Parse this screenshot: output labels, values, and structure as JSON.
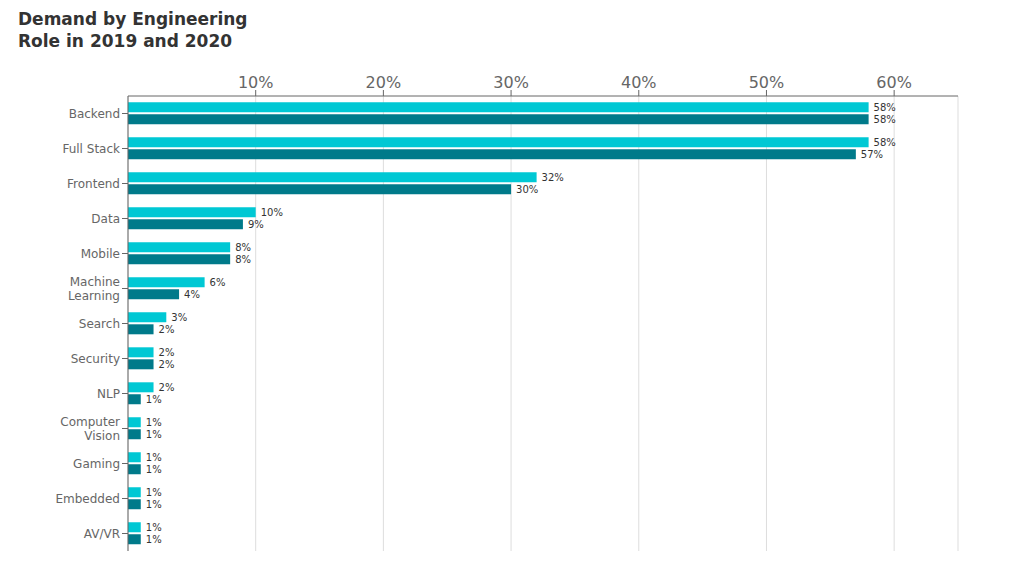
{
  "chart_data": {
    "type": "bar",
    "title": "Demand by Engineering\nRole in 2019 and 2020",
    "orientation": "horizontal",
    "categories": [
      "Backend",
      "Full Stack",
      "Frontend",
      "Data",
      "Mobile",
      "Machine\nLearning",
      "Search",
      "Security",
      "NLP",
      "Computer\nVision",
      "Gaming",
      "Embedded",
      "AV/VR"
    ],
    "series": [
      {
        "color": "#00c8d4",
        "values": [
          58,
          58,
          32,
          10,
          8,
          6,
          3,
          2,
          2,
          1,
          1,
          1,
          1
        ],
        "value_labels": [
          "58%",
          "58%",
          "32%",
          "10%",
          "8%",
          "6%",
          "3%",
          "2%",
          "2%",
          "1%",
          "1%",
          "1%",
          "1%"
        ]
      },
      {
        "color": "#007a8a",
        "values": [
          58,
          57,
          30,
          9,
          8,
          4,
          2,
          2,
          1,
          1,
          1,
          1,
          1
        ],
        "value_labels": [
          "58%",
          "57%",
          "30%",
          "9%",
          "8%",
          "4%",
          "2%",
          "2%",
          "1%",
          "1%",
          "1%",
          "1%",
          "1%"
        ]
      }
    ],
    "xlim": [
      0,
      65
    ],
    "xticks": [
      {
        "value": 10,
        "label": "10%"
      },
      {
        "value": 20,
        "label": "20%"
      },
      {
        "value": 30,
        "label": "30%"
      },
      {
        "value": 40,
        "label": "40%"
      },
      {
        "value": 50,
        "label": "50%"
      },
      {
        "value": 60,
        "label": "60%"
      }
    ],
    "grid": true,
    "data_labels": true
  }
}
